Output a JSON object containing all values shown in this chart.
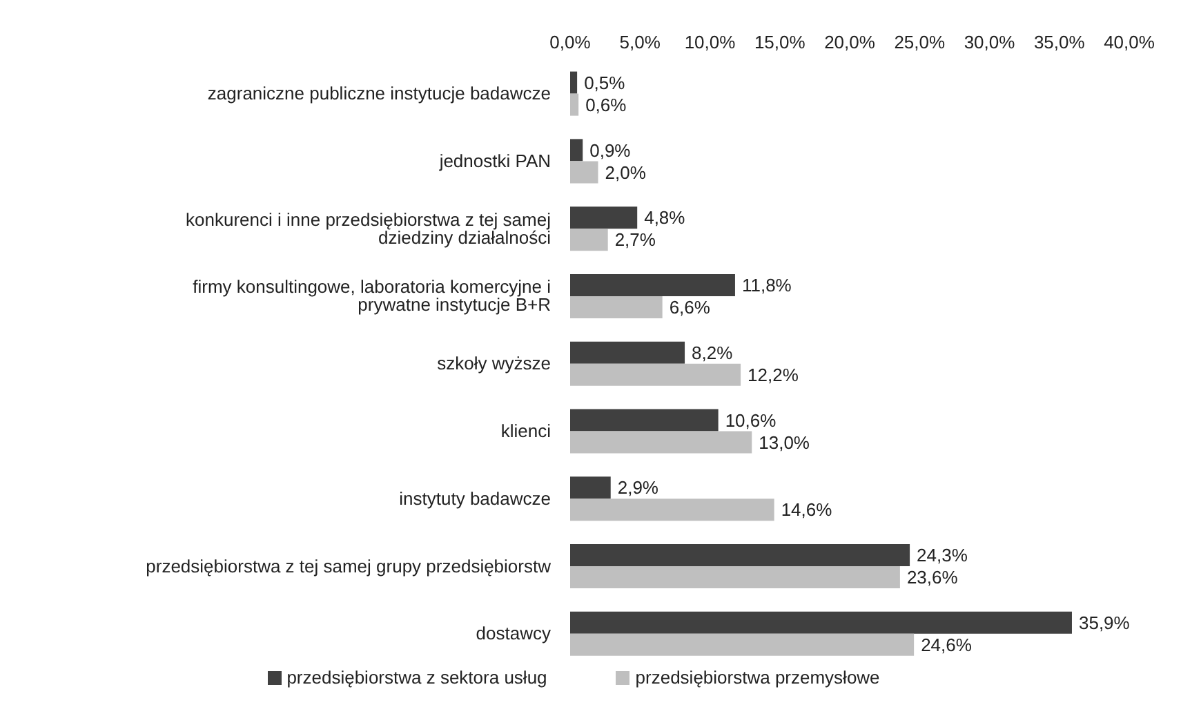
{
  "chart_data": {
    "type": "bar",
    "orientation": "horizontal",
    "categories": [
      "zagraniczne publiczne instytucje badawcze",
      "jednostki PAN",
      "konkurenci i inne przedsiębiorstwa z tej samej dziedziny działalności",
      "firmy konsultingowe, laboratoria komercyjne i prywatne instytucje B+R",
      "szkoły wyższe",
      "klienci",
      "instytuty badawcze",
      "przedsiębiorstwa z tej samej grupy przedsiębiorstw",
      "dostawcy"
    ],
    "series": [
      {
        "name": "przedsiębiorstwa z sektora usług",
        "color": "#404040",
        "values": [
          0.5,
          0.9,
          4.8,
          11.8,
          8.2,
          10.6,
          2.9,
          24.3,
          35.9
        ],
        "value_labels": [
          "0,5%",
          "0,9%",
          "4,8%",
          "11,8%",
          "8,2%",
          "10,6%",
          "2,9%",
          "24,3%",
          "35,9%"
        ]
      },
      {
        "name": "przedsiębiorstwa przemysłowe",
        "color": "#bfbfbf",
        "values": [
          0.6,
          2.0,
          2.7,
          6.6,
          12.2,
          13.0,
          14.6,
          23.6,
          24.6
        ],
        "value_labels": [
          "0,6%",
          "2,0%",
          "2,7%",
          "6,6%",
          "12,2%",
          "13,0%",
          "14,6%",
          "23,6%",
          "24,6%"
        ]
      }
    ],
    "xlim": [
      0,
      40
    ],
    "xticks": [
      {
        "value": 0,
        "label": "0,0%"
      },
      {
        "value": 5,
        "label": "5,0%"
      },
      {
        "value": 10,
        "label": "10,0%"
      },
      {
        "value": 15,
        "label": "15,0%"
      },
      {
        "value": 20,
        "label": "20,0%"
      },
      {
        "value": 25,
        "label": "25,0%"
      },
      {
        "value": 30,
        "label": "30,0%"
      },
      {
        "value": 35,
        "label": "35,0%"
      },
      {
        "value": 40,
        "label": "40,0%"
      }
    ],
    "legend": "bottom"
  }
}
